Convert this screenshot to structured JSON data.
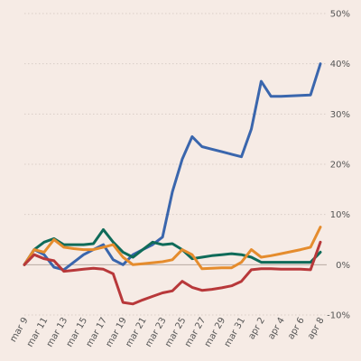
{
  "chart_data": {
    "type": "line",
    "title": "",
    "xlabel": "",
    "ylabel": "",
    "ylim": [
      -10,
      50
    ],
    "y_ticks": [
      -10,
      0,
      10,
      20,
      30,
      40,
      50
    ],
    "y_tick_labels": [
      "-10%",
      "0%",
      "10%",
      "20%",
      "30%",
      "40%",
      "50%"
    ],
    "y_axis_side": "right",
    "grid": "horizontal dotted",
    "legend": "none",
    "x_tick_labels": [
      "mar 9",
      "mar 11",
      "mar 13",
      "mar 15",
      "mar 17",
      "mar 19",
      "mar 21",
      "mar 23",
      "mar 25",
      "mar 27",
      "mar 29",
      "mar 31",
      "apr 2",
      "apr 4",
      "apr 6",
      "apr 8"
    ],
    "x": [
      "mar 9",
      "mar 10",
      "mar 11",
      "mar 12",
      "mar 13",
      "mar 14",
      "mar 15",
      "mar 16",
      "mar 17",
      "mar 18",
      "mar 19",
      "mar 20",
      "mar 21",
      "mar 22",
      "mar 23",
      "mar 24",
      "mar 25",
      "mar 26",
      "mar 27",
      "mar 28",
      "mar 29",
      "mar 30",
      "mar 31",
      "apr 1",
      "apr 2",
      "apr 3",
      "apr 4",
      "apr 5",
      "apr 6",
      "apr 7",
      "apr 8"
    ],
    "series": [
      {
        "color": "#3a66ad",
        "values": [
          0,
          3,
          2,
          -0.5,
          -1,
          0.5,
          2,
          3,
          4,
          1,
          0,
          2,
          3,
          4,
          5.5,
          14.5,
          21,
          25.5,
          23.5,
          23,
          22.5,
          22,
          21.5,
          27,
          36.5,
          33.5,
          33.5,
          33.6,
          33.7,
          33.8,
          40
        ]
      },
      {
        "color": "#0f6b59",
        "values": [
          0,
          3,
          4.5,
          5.2,
          4,
          4,
          4,
          4.2,
          7,
          4.5,
          2.5,
          1.5,
          3,
          4.5,
          4,
          4.2,
          3,
          1.2,
          1.5,
          1.8,
          2,
          2.2,
          2,
          1.5,
          0.5,
          0.5,
          0.5,
          0.5,
          0.5,
          0.5,
          2.5
        ]
      },
      {
        "color": "#e58c2d",
        "values": [
          0,
          3,
          2.5,
          5,
          3.5,
          3.2,
          3,
          3,
          3.5,
          4,
          1.5,
          0,
          0.2,
          0.4,
          0.6,
          1,
          3,
          2,
          -0.8,
          -0.7,
          -0.6,
          -0.6,
          0.5,
          3,
          1.5,
          1.8,
          2.2,
          2.6,
          3,
          3.5,
          7.5
        ]
      },
      {
        "color": "#b8383a",
        "values": [
          0,
          2,
          1.2,
          0.8,
          -1.3,
          -1.1,
          -0.9,
          -0.7,
          -0.9,
          -1.8,
          -7.5,
          -7.8,
          -7,
          -6.3,
          -5.6,
          -5.2,
          -3.3,
          -4.5,
          -5.1,
          -4.9,
          -4.6,
          -4.2,
          -3.3,
          -1,
          -0.8,
          -0.8,
          -0.9,
          -0.9,
          -0.9,
          -1,
          4.5
        ]
      }
    ]
  }
}
